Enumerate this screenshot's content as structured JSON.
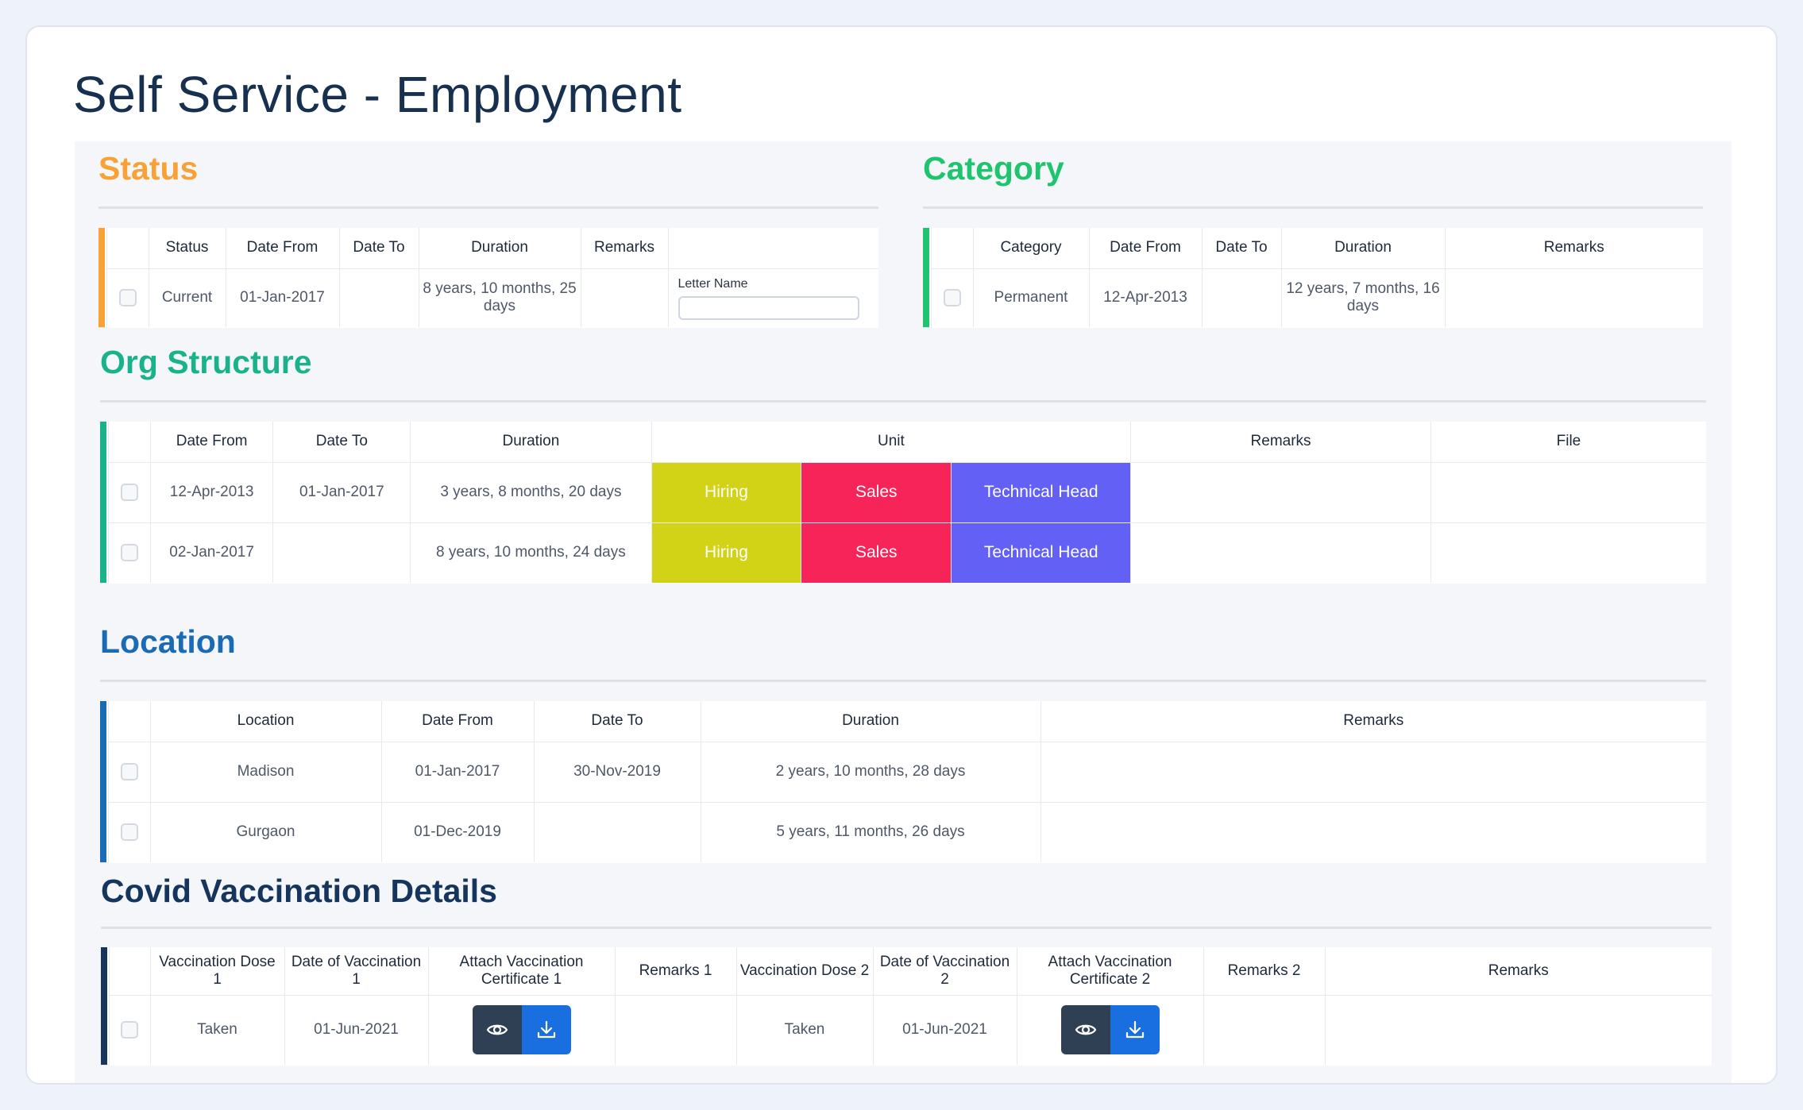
{
  "page": {
    "title": "Self Service - Employment"
  },
  "colors": {
    "status": "#f8a136",
    "category": "#1fc46e",
    "org": "#19b28a",
    "location": "#1a6bb5",
    "covid": "#15355c",
    "hiring": "#d2d216",
    "sales": "#f72459",
    "tech": "#6360f6",
    "view_btn": "#2f4055",
    "download_btn": "#1a6fe0"
  },
  "status": {
    "title": "Status",
    "headers": [
      "Status",
      "Date From",
      "Date To",
      "Duration",
      "Remarks"
    ],
    "row": {
      "status": "Current",
      "date_from": "01-Jan-2017",
      "date_to": "",
      "duration": "8 years, 10 months, 25 days",
      "remarks": ""
    },
    "letter_label": "Letter Name",
    "letter_value": ""
  },
  "category": {
    "title": "Category",
    "headers": [
      "Category",
      "Date From",
      "Date To",
      "Duration",
      "Remarks"
    ],
    "row": {
      "category": "Permanent",
      "date_from": "12-Apr-2013",
      "date_to": "",
      "duration": "12 years, 7 months, 16 days",
      "remarks": ""
    }
  },
  "org": {
    "title": "Org Structure",
    "headers": [
      "Date From",
      "Date To",
      "Duration",
      "Unit",
      "Remarks",
      "File"
    ],
    "rows": [
      {
        "date_from": "12-Apr-2013",
        "date_to": "01-Jan-2017",
        "duration": "3 years, 8 months, 20 days",
        "unit1": "Hiring",
        "unit2": "Sales",
        "unit3": "Technical Head",
        "remarks": "",
        "file": ""
      },
      {
        "date_from": "02-Jan-2017",
        "date_to": "",
        "duration": "8 years, 10 months, 24 days",
        "unit1": "Hiring",
        "unit2": "Sales",
        "unit3": "Technical Head",
        "remarks": "",
        "file": ""
      }
    ]
  },
  "location": {
    "title": "Location",
    "headers": [
      "Location",
      "Date From",
      "Date To",
      "Duration",
      "Remarks"
    ],
    "rows": [
      {
        "location": "Madison",
        "date_from": "01-Jan-2017",
        "date_to": "30-Nov-2019",
        "duration": "2 years, 10 months, 28 days",
        "remarks": ""
      },
      {
        "location": "Gurgaon",
        "date_from": "01-Dec-2019",
        "date_to": "",
        "duration": "5 years, 11 months, 26 days",
        "remarks": ""
      }
    ]
  },
  "covid": {
    "title": "Covid Vaccination Details",
    "headers": [
      "Vaccination Dose 1",
      "Date of Vaccination 1",
      "Attach Vaccination Certificate 1",
      "Remarks 1",
      "Vaccination Dose 2",
      "Date of Vaccination 2",
      "Attach Vaccination Certificate 2",
      "Remarks 2",
      "Remarks"
    ],
    "row": {
      "dose1": "Taken",
      "date1": "01-Jun-2021",
      "remarks1": "",
      "dose2": "Taken",
      "date2": "01-Jun-2021",
      "remarks2": "",
      "remarks": ""
    },
    "icons": {
      "view": "eye-icon",
      "download": "download-icon"
    }
  }
}
